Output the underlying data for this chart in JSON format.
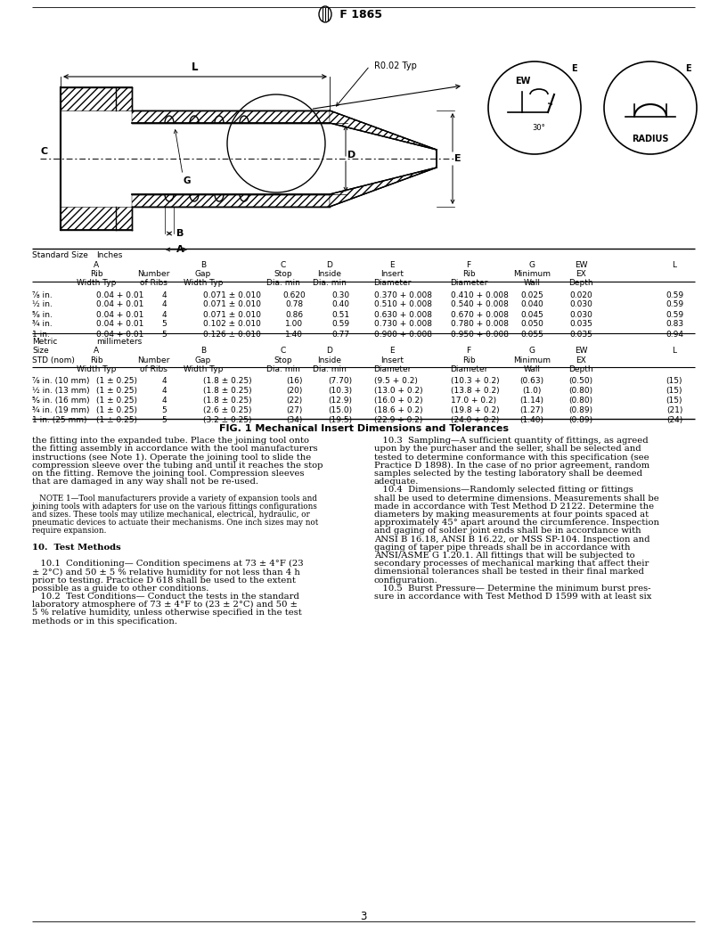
{
  "title": "Ⓜ F 1865",
  "fig_caption": "FIG. 1 Mechanical Insert Dimensions and Tolerances",
  "bg_color": "#ffffff",
  "inches_data": [
    [
      "⅞ in.",
      "0.04 + 0.01",
      "4",
      "0.071 ± 0.010",
      "0.620",
      "0.30",
      "0.370 + 0.008",
      "0.410 + 0.008",
      "0.025",
      "0.020",
      "0.59"
    ],
    [
      "½ in.",
      "0.04 + 0.01",
      "4",
      "0.071 ± 0.010",
      "0.78",
      "0.40",
      "0.510 + 0.008",
      "0.540 + 0.008",
      "0.040",
      "0.030",
      "0.59"
    ],
    [
      "⅝ in.",
      "0.04 + 0.01",
      "4",
      "0.071 ± 0.010",
      "0.86",
      "0.51",
      "0.630 + 0.008",
      "0.670 + 0.008",
      "0.045",
      "0.030",
      "0.59"
    ],
    [
      "¾ in.",
      "0.04 + 0.01",
      "5",
      "0.102 ± 0.010",
      "1.00",
      "0.59",
      "0.730 + 0.008",
      "0.780 + 0.008",
      "0.050",
      "0.035",
      "0.83"
    ],
    [
      "1 in.",
      "0.04 + 0.01",
      "5",
      "0.126 ± 0.010",
      "1.40",
      "0.77",
      "0.900 + 0.008",
      "0.950 + 0.008",
      "0.055",
      "0.035",
      "0.94"
    ]
  ],
  "metric_data": [
    [
      "⅞ in. (10 mm)",
      "(1 ± 0.25)",
      "4",
      "(1.8 ± 0.25)",
      "(16)",
      "(7.70)",
      "(9.5 + 0.2)",
      "(10.3 + 0.2)",
      "(0.63)",
      "(0.50)",
      "(15)"
    ],
    [
      "½ in. (13 mm)",
      "(1 ± 0.25)",
      "4",
      "(1.8 ± 0.25)",
      "(20)",
      "(10.3)",
      "(13.0 + 0.2)",
      "(13.8 + 0.2)",
      "(1.0)",
      "(0.80)",
      "(15)"
    ],
    [
      "⅝ in. (16 mm)",
      "(1 ± 0.25)",
      "4",
      "(1.8 ± 0.25)",
      "(22)",
      "(12.9)",
      "(16.0 + 0.2)",
      "17.0 + 0.2)",
      "(1.14)",
      "(0.80)",
      "(15)"
    ],
    [
      "¾ in. (19 mm)",
      "(1 ± 0.25)",
      "5",
      "(2.6 ± 0.25)",
      "(27)",
      "(15.0)",
      "(18.6 + 0.2)",
      "(19.8 + 0.2)",
      "(1.27)",
      "(0.89)",
      "(21)"
    ],
    [
      "1 in. (25 mm)",
      "(1 ± 0.25)",
      "5",
      "(3.2 ± 0.25)",
      "(34)",
      "(19.5)",
      "(22.9 + 0.2)",
      "(24.0 + 0.2)",
      "(1.40)",
      "(0.89)",
      "(24)"
    ]
  ],
  "body_text_left": [
    "the fitting into the expanded tube. Place the joining tool onto",
    "the fitting assembly in accordance with the tool manufacturers",
    "instructions (see Note 1). Operate the joining tool to slide the",
    "compression sleeve over the tubing and until it reaches the stop",
    "on the fitting. Remove the joining tool. Compression sleeves",
    "that are damaged in any way shall not be re-used.",
    "",
    "   NOTE 1—Tool manufacturers provide a variety of expansion tools and",
    "joining tools with adapters for use on the various fittings configurations",
    "and sizes. These tools may utilize mechanical, electrical, hydraulic, or",
    "pneumatic devices to actuate their mechanisms. One inch sizes may not",
    "require expansion.",
    "",
    "10.  Test Methods",
    "",
    "   10.1  Conditioning— Condition specimens at 73 ± 4°F (23",
    "± 2°C) and 50 ± 5 % relative humidity for not less than 4 h",
    "prior to testing. Practice D 618 shall be used to the extent",
    "possible as a guide to other conditions.",
    "   10.2  Test Conditions— Conduct the tests in the standard",
    "laboratory atmosphere of 73 ± 4°F to (23 ± 2°C) and 50 ±",
    "5 % relative humidity, unless otherwise specified in the test",
    "methods or in this specification."
  ],
  "body_text_right": [
    "   10.3  Sampling—A sufficient quantity of fittings, as agreed",
    "upon by the purchaser and the seller, shall be selected and",
    "tested to determine conformance with this specification (see",
    "Practice D 1898). In the case of no prior agreement, random",
    "samples selected by the testing laboratory shall be deemed",
    "adequate.",
    "   10.4  Dimensions—Randomly selected fitting or fittings",
    "shall be used to determine dimensions. Measurements shall be",
    "made in accordance with Test Method D 2122. Determine the",
    "diameters by making measurements at four points spaced at",
    "approximately 45° apart around the circumference. Inspection",
    "and gaging of solder joint ends shall be in accordance with",
    "ANSI B 16.18, ANSI B 16.22, or MSS SP-104. Inspection and",
    "gaging of taper pipe threads shall be in accordance with",
    "ANSI/ASME G 1.20.1. All fittings that will be subjected to",
    "secondary processes of mechanical marking that affect their",
    "dimensional tolerances shall be tested in their final marked",
    "configuration.",
    "   10.5  Burst Pressure— Determine the minimum burst pres-",
    "sure in accordance with Test Method D 1599 with at least six"
  ],
  "page_number": "3"
}
